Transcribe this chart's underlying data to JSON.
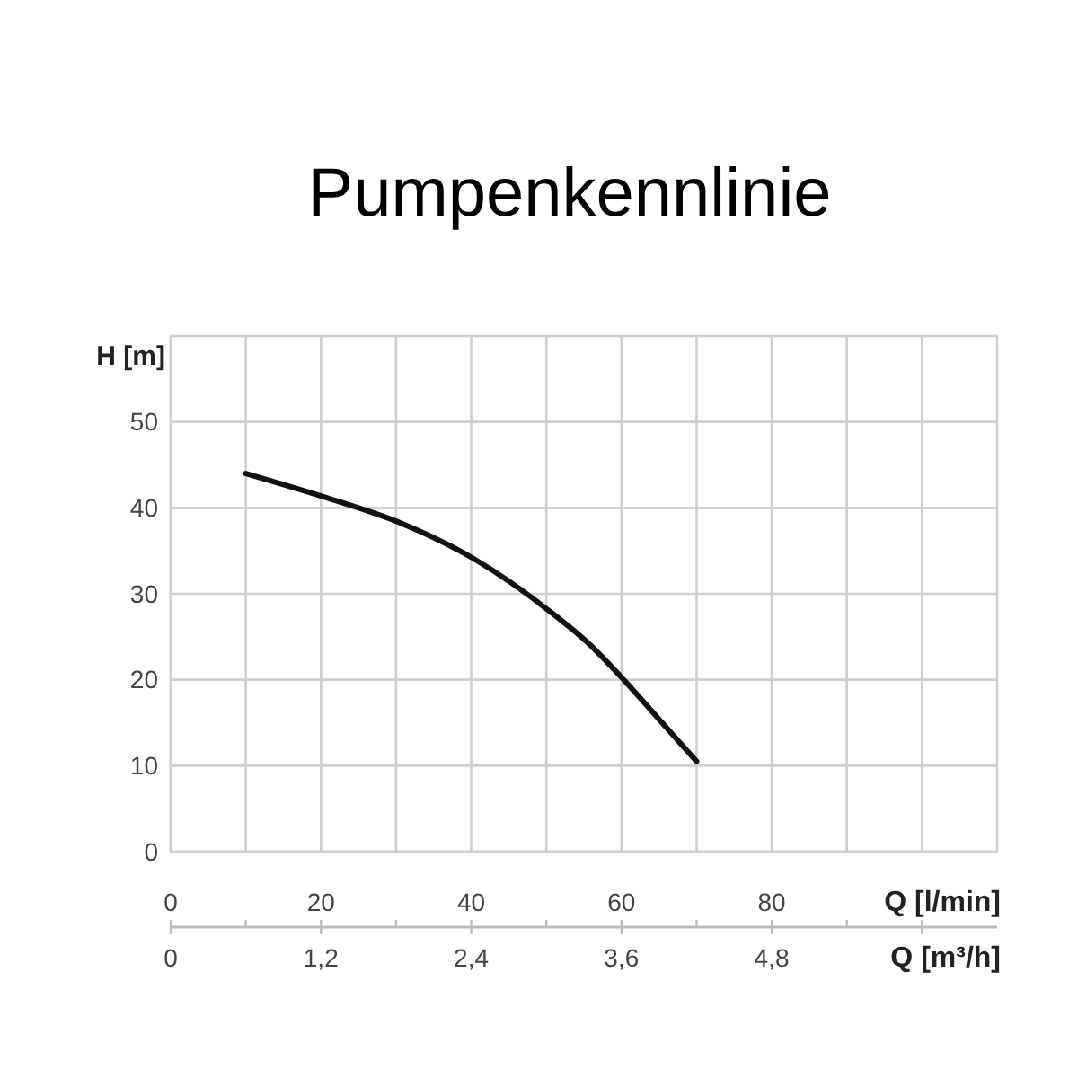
{
  "chart_data": {
    "type": "line",
    "title": "Pumpenkennlinie",
    "xlabel": "Q [l/min]",
    "x2label": "Q [m³/h]",
    "ylabel": "H [m]",
    "xlim": [
      0,
      110
    ],
    "xticks": [
      0,
      {
        "value": 10,
        "label": null
      },
      20,
      {
        "value": 30,
        "label": null
      },
      40,
      {
        "value": 50,
        "label": null
      },
      60,
      {
        "value": 70,
        "label": null
      },
      80,
      {
        "value": 90,
        "label": null
      },
      {
        "value": 100,
        "label": null
      }
    ],
    "x2lim": [
      0,
      6.6
    ],
    "x2ticks": [
      0,
      {
        "value": 1.2,
        "label": "1,2"
      },
      {
        "value": 2.4,
        "label": "2,4"
      },
      {
        "value": 3.6,
        "label": "3,6"
      },
      {
        "value": 4.8,
        "label": "4,8"
      },
      {
        "value": 6.0,
        "label": null
      }
    ],
    "ylim": [
      0,
      60
    ],
    "yticks": [
      0,
      10,
      20,
      30,
      40,
      50
    ],
    "grid": true,
    "marker": "none",
    "line_style": "solid",
    "series": [
      {
        "color": "#111111",
        "x": [
          10,
          20.3,
          30.7,
          40.3,
          50.7,
          55.4,
          60.4,
          65,
          70
        ],
        "values": [
          44,
          41.3,
          38.2,
          34.1,
          27.8,
          24.4,
          19.9,
          15.4,
          10.5
        ]
      }
    ]
  }
}
